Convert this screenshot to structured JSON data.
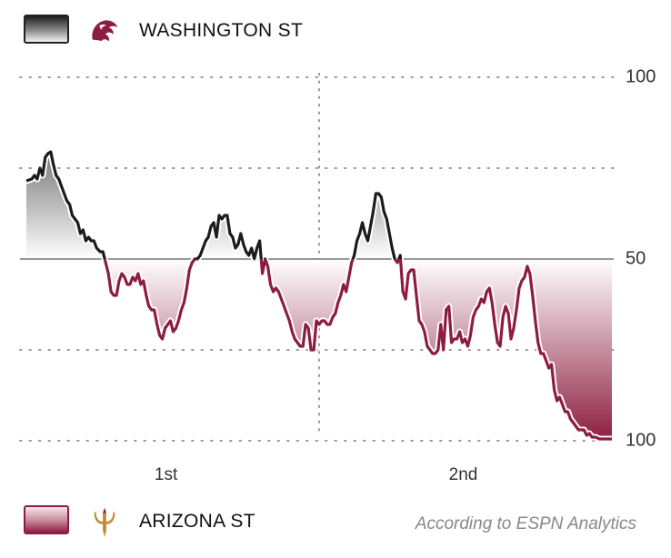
{
  "teams": {
    "top": {
      "name": "WASHINGTON ST",
      "color": "#1c1c1c",
      "logo_icon": "wsu-cougar-logo-icon"
    },
    "bottom": {
      "name": "ARIZONA ST",
      "color": "#8c1d40",
      "logo_icon": "asu-pitchfork-logo-icon"
    }
  },
  "source": "According to ESPN Analytics",
  "chart_data": {
    "type": "area",
    "title": "",
    "xlabel": "",
    "ylabel": "",
    "ylim": [
      0,
      100
    ],
    "xlim": [
      0,
      65
    ],
    "y_tick_labels": [
      {
        "value": 100,
        "label": "100"
      },
      {
        "value": 50,
        "label": "50"
      },
      {
        "value": 0,
        "label": "100"
      }
    ],
    "gridlines": [
      100,
      75,
      25,
      0
    ],
    "midline": 50,
    "periods": [
      {
        "label": "1st",
        "position": 15.5
      },
      {
        "label": "2nd",
        "position": 48.5
      }
    ],
    "halftime_at": 32.5,
    "series": [
      {
        "values": [
          [
            0.0,
            71.5
          ],
          [
            0.6,
            72
          ],
          [
            0.9,
            73
          ],
          [
            1.2,
            72
          ],
          [
            1.5,
            75
          ],
          [
            1.8,
            73
          ],
          [
            2.1,
            78
          ],
          [
            2.4,
            79
          ],
          [
            2.7,
            79.5
          ],
          [
            3.0,
            76
          ],
          [
            3.3,
            73
          ],
          [
            3.6,
            72
          ],
          [
            3.9,
            70
          ],
          [
            4.2,
            68
          ],
          [
            4.5,
            66
          ],
          [
            4.8,
            65
          ],
          [
            5.1,
            62
          ],
          [
            5.4,
            61
          ],
          [
            5.7,
            60
          ],
          [
            6.0,
            57
          ],
          [
            6.3,
            58
          ],
          [
            6.6,
            55
          ],
          [
            6.9,
            56
          ],
          [
            7.2,
            55
          ],
          [
            7.5,
            55
          ],
          [
            7.8,
            53
          ],
          [
            8.2,
            52
          ],
          [
            8.5,
            52
          ],
          [
            8.8,
            49
          ],
          [
            9.1,
            46
          ],
          [
            9.4,
            41
          ],
          [
            9.7,
            40
          ],
          [
            10.0,
            40
          ],
          [
            10.3,
            44
          ],
          [
            10.6,
            46
          ],
          [
            10.9,
            45
          ],
          [
            11.2,
            43
          ],
          [
            11.5,
            43
          ],
          [
            11.8,
            45
          ],
          [
            12.1,
            44
          ],
          [
            12.4,
            46
          ],
          [
            12.7,
            43
          ],
          [
            13.0,
            44
          ],
          [
            13.3,
            40
          ],
          [
            13.6,
            37
          ],
          [
            13.9,
            36
          ],
          [
            14.2,
            36
          ],
          [
            14.5,
            32
          ],
          [
            14.8,
            29
          ],
          [
            15.1,
            28
          ],
          [
            15.4,
            31
          ],
          [
            15.7,
            32
          ],
          [
            16.0,
            33
          ],
          [
            16.3,
            30
          ],
          [
            16.6,
            31
          ],
          [
            16.9,
            33
          ],
          [
            17.2,
            36
          ],
          [
            17.5,
            38
          ],
          [
            17.8,
            42
          ],
          [
            18.1,
            47
          ],
          [
            18.4,
            49
          ],
          [
            18.7,
            50
          ],
          [
            19.0,
            50
          ],
          [
            19.3,
            51
          ],
          [
            19.6,
            53
          ],
          [
            19.9,
            55
          ],
          [
            20.2,
            56
          ],
          [
            20.5,
            59
          ],
          [
            20.8,
            60
          ],
          [
            21.1,
            56
          ],
          [
            21.4,
            62
          ],
          [
            21.7,
            61
          ],
          [
            22.0,
            62
          ],
          [
            22.3,
            62
          ],
          [
            22.6,
            57
          ],
          [
            22.9,
            56
          ],
          [
            23.2,
            53
          ],
          [
            23.5,
            54
          ],
          [
            23.8,
            57
          ],
          [
            24.1,
            54
          ],
          [
            24.4,
            52
          ],
          [
            24.7,
            51
          ],
          [
            25.0,
            53
          ],
          [
            25.3,
            50
          ],
          [
            25.6,
            53
          ],
          [
            25.9,
            55
          ],
          [
            26.2,
            46
          ],
          [
            26.5,
            50
          ],
          [
            26.8,
            48
          ],
          [
            27.1,
            43
          ],
          [
            27.4,
            41
          ],
          [
            27.7,
            42
          ],
          [
            28.0,
            41
          ],
          [
            28.3,
            39
          ],
          [
            28.6,
            37
          ],
          [
            28.9,
            35
          ],
          [
            29.2,
            33
          ],
          [
            29.5,
            30
          ],
          [
            29.8,
            28
          ],
          [
            30.1,
            27
          ],
          [
            30.4,
            26
          ],
          [
            30.7,
            26
          ],
          [
            31.0,
            32
          ],
          [
            31.3,
            31
          ],
          [
            31.6,
            25
          ],
          [
            31.9,
            25
          ],
          [
            32.2,
            33
          ],
          [
            32.5,
            32
          ],
          [
            32.8,
            33
          ],
          [
            33.1,
            33
          ],
          [
            33.4,
            32
          ],
          [
            33.7,
            32
          ],
          [
            34.0,
            34
          ],
          [
            34.3,
            35
          ],
          [
            34.6,
            38
          ],
          [
            34.9,
            40
          ],
          [
            35.2,
            43
          ],
          [
            35.5,
            41
          ],
          [
            35.8,
            45
          ],
          [
            36.1,
            49
          ],
          [
            36.4,
            51
          ],
          [
            36.7,
            55
          ],
          [
            37.0,
            57
          ],
          [
            37.3,
            60
          ],
          [
            37.6,
            57
          ],
          [
            37.9,
            55
          ],
          [
            38.2,
            59
          ],
          [
            38.5,
            63
          ],
          [
            38.8,
            68
          ],
          [
            39.1,
            68
          ],
          [
            39.4,
            67
          ],
          [
            39.7,
            63
          ],
          [
            40.0,
            61
          ],
          [
            40.3,
            57
          ],
          [
            40.6,
            53
          ],
          [
            40.9,
            50
          ],
          [
            41.2,
            49
          ],
          [
            41.5,
            51
          ],
          [
            41.8,
            41
          ],
          [
            42.1,
            39
          ],
          [
            42.4,
            46
          ],
          [
            42.7,
            47
          ],
          [
            43.0,
            47
          ],
          [
            43.3,
            40
          ],
          [
            43.6,
            33
          ],
          [
            43.9,
            32
          ],
          [
            44.2,
            30
          ],
          [
            44.5,
            26
          ],
          [
            44.8,
            25
          ],
          [
            45.1,
            24
          ],
          [
            45.4,
            24
          ],
          [
            45.7,
            25
          ],
          [
            46.0,
            32
          ],
          [
            46.3,
            25
          ],
          [
            46.6,
            36
          ],
          [
            46.9,
            37
          ],
          [
            47.2,
            27
          ],
          [
            47.5,
            28
          ],
          [
            47.8,
            28
          ],
          [
            48.1,
            30
          ],
          [
            48.4,
            27
          ],
          [
            48.7,
            28
          ],
          [
            49.0,
            26
          ],
          [
            49.3,
            29
          ],
          [
            49.6,
            34
          ],
          [
            49.9,
            36
          ],
          [
            50.2,
            37
          ],
          [
            50.5,
            39
          ],
          [
            50.8,
            38
          ],
          [
            51.1,
            41
          ],
          [
            51.4,
            42
          ],
          [
            51.7,
            38
          ],
          [
            52.0,
            32
          ],
          [
            52.3,
            27
          ],
          [
            52.6,
            26
          ],
          [
            52.9,
            34
          ],
          [
            53.2,
            37
          ],
          [
            53.5,
            35
          ],
          [
            53.8,
            28
          ],
          [
            54.1,
            31
          ],
          [
            54.4,
            36
          ],
          [
            54.7,
            42
          ],
          [
            55.0,
            44
          ],
          [
            55.3,
            45
          ],
          [
            55.6,
            48
          ],
          [
            55.9,
            46
          ],
          [
            56.2,
            40
          ],
          [
            56.5,
            33
          ],
          [
            56.8,
            27
          ],
          [
            57.1,
            24
          ],
          [
            57.4,
            24
          ],
          [
            57.7,
            22
          ],
          [
            58.0,
            20
          ],
          [
            58.3,
            21
          ],
          [
            58.6,
            14
          ],
          [
            58.9,
            11
          ],
          [
            59.2,
            12
          ],
          [
            59.5,
            10
          ],
          [
            59.8,
            8
          ],
          [
            60.1,
            8
          ],
          [
            60.4,
            6
          ],
          [
            60.7,
            5
          ],
          [
            61.0,
            4
          ],
          [
            61.3,
            3
          ],
          [
            61.6,
            3
          ],
          [
            61.9,
            3
          ],
          [
            62.2,
            1.5
          ],
          [
            62.5,
            2
          ],
          [
            62.8,
            1
          ],
          [
            63.2,
            1
          ],
          [
            63.6,
            0.5
          ],
          [
            64.1,
            0.5
          ],
          [
            65.0,
            0.5
          ]
        ]
      }
    ]
  }
}
